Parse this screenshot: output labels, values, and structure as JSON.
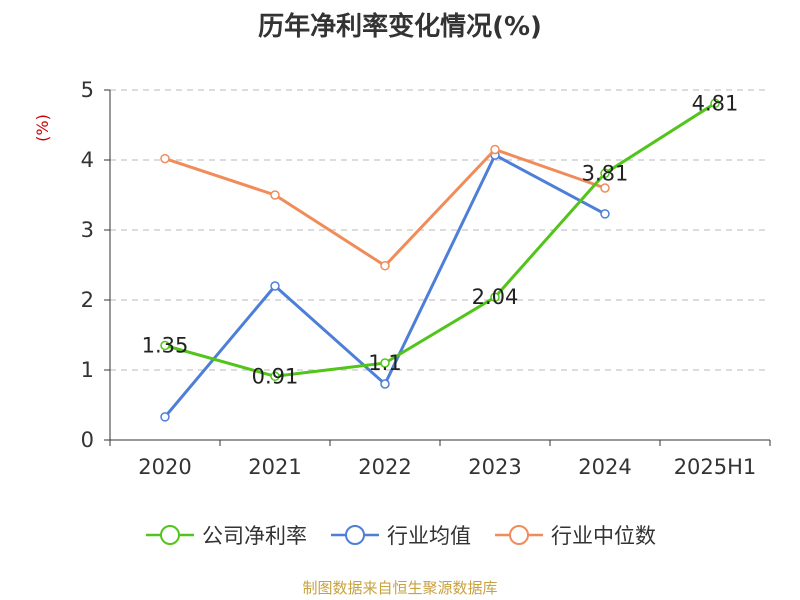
{
  "chart_data": {
    "type": "line",
    "title": "历年净利率变化情况(%)",
    "ylabel": "(%)",
    "categories": [
      "2020",
      "2021",
      "2022",
      "2023",
      "2024",
      "2025H1"
    ],
    "ylim": [
      0,
      5
    ],
    "yticks": [
      "0",
      "1",
      "2",
      "3",
      "4",
      "5"
    ],
    "grid": true,
    "legend_position": "bottom",
    "series": [
      {
        "name": "公司净利率",
        "color": "#52c41a",
        "values": [
          1.35,
          0.91,
          1.1,
          2.04,
          3.81,
          4.81
        ],
        "labels": [
          "1.35",
          "0.91",
          "1.1",
          "2.04",
          "3.81",
          "4.81"
        ]
      },
      {
        "name": "行业均值",
        "color": "#4e7fd8",
        "values": [
          0.33,
          2.2,
          0.8,
          4.07,
          3.23,
          null
        ]
      },
      {
        "name": "行业中位数",
        "color": "#f08c5a",
        "values": [
          4.02,
          3.5,
          2.49,
          4.15,
          3.6,
          null
        ]
      }
    ]
  },
  "source": "制图数据来自恒生聚源数据库"
}
